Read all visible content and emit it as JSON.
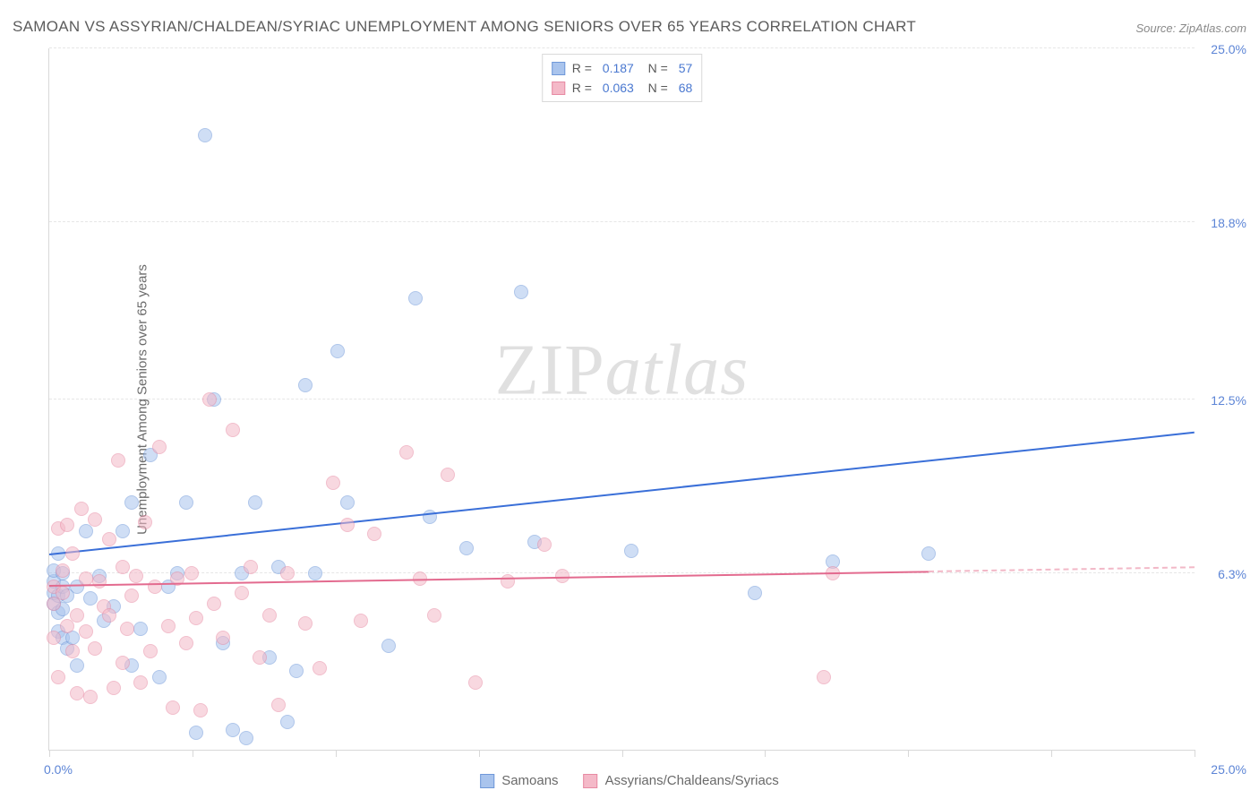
{
  "title": "SAMOAN VS ASSYRIAN/CHALDEAN/SYRIAC UNEMPLOYMENT AMONG SENIORS OVER 65 YEARS CORRELATION CHART",
  "source": "Source: ZipAtlas.com",
  "y_axis_label": "Unemployment Among Seniors over 65 years",
  "watermark_a": "ZIP",
  "watermark_b": "atlas",
  "chart": {
    "type": "scatter",
    "xlim": [
      0,
      25
    ],
    "ylim": [
      0,
      25
    ],
    "y_ticks": [
      {
        "v": 6.3,
        "label": "6.3%"
      },
      {
        "v": 12.5,
        "label": "12.5%"
      },
      {
        "v": 18.8,
        "label": "18.8%"
      },
      {
        "v": 25.0,
        "label": "25.0%"
      }
    ],
    "x_ticks": [
      0,
      3.125,
      6.25,
      9.375,
      12.5,
      15.625,
      18.75,
      21.875,
      25
    ],
    "x_origin_label": "0.0%",
    "x_max_label": "25.0%",
    "grid_color": "#e6e6e6",
    "axis_color": "#d8d8d8",
    "background_color": "#ffffff",
    "point_radius": 8,
    "point_opacity": 0.55,
    "series": [
      {
        "name": "Samoans",
        "label": "Samoans",
        "color_fill": "#a9c4ed",
        "color_stroke": "#6f98d9",
        "R": "0.187",
        "N": "57",
        "trend": {
          "x1": 0.0,
          "y1": 6.95,
          "x2": 25.0,
          "y2": 11.3,
          "color": "#3a6fd8"
        },
        "points": [
          [
            0.1,
            5.2
          ],
          [
            0.1,
            5.6
          ],
          [
            0.1,
            6.0
          ],
          [
            0.1,
            6.4
          ],
          [
            0.2,
            4.2
          ],
          [
            0.2,
            4.9
          ],
          [
            0.2,
            5.5
          ],
          [
            0.2,
            7.0
          ],
          [
            0.3,
            4.0
          ],
          [
            0.3,
            5.0
          ],
          [
            0.3,
            5.8
          ],
          [
            0.3,
            6.3
          ],
          [
            0.4,
            3.6
          ],
          [
            0.4,
            5.5
          ],
          [
            0.5,
            4.0
          ],
          [
            0.6,
            3.0
          ],
          [
            0.6,
            5.8
          ],
          [
            0.8,
            7.8
          ],
          [
            0.9,
            5.4
          ],
          [
            1.1,
            6.2
          ],
          [
            1.2,
            4.6
          ],
          [
            1.4,
            5.1
          ],
          [
            1.6,
            7.8
          ],
          [
            1.8,
            3.0
          ],
          [
            1.8,
            8.8
          ],
          [
            2.0,
            4.3
          ],
          [
            2.2,
            10.5
          ],
          [
            2.4,
            2.6
          ],
          [
            2.6,
            5.8
          ],
          [
            2.8,
            6.3
          ],
          [
            3.0,
            8.8
          ],
          [
            3.2,
            0.6
          ],
          [
            3.4,
            21.9
          ],
          [
            3.6,
            12.5
          ],
          [
            3.8,
            3.8
          ],
          [
            4.0,
            0.7
          ],
          [
            4.2,
            6.3
          ],
          [
            4.3,
            0.4
          ],
          [
            4.5,
            8.8
          ],
          [
            4.8,
            3.3
          ],
          [
            5.0,
            6.5
          ],
          [
            5.2,
            1.0
          ],
          [
            5.4,
            2.8
          ],
          [
            5.6,
            13.0
          ],
          [
            5.8,
            6.3
          ],
          [
            6.3,
            14.2
          ],
          [
            6.5,
            8.8
          ],
          [
            7.4,
            3.7
          ],
          [
            8.0,
            16.1
          ],
          [
            8.3,
            8.3
          ],
          [
            9.1,
            7.2
          ],
          [
            10.3,
            16.3
          ],
          [
            10.6,
            7.4
          ],
          [
            12.7,
            7.1
          ],
          [
            15.4,
            5.6
          ],
          [
            17.1,
            6.7
          ],
          [
            19.2,
            7.0
          ]
        ]
      },
      {
        "name": "Assyrians/Chaldeans/Syriacs",
        "label": "Assyrians/Chaldeans/Syriacs",
        "color_fill": "#f4b9c8",
        "color_stroke": "#e78aa3",
        "R": "0.063",
        "N": "68",
        "trend": {
          "x1": 0.0,
          "y1": 5.85,
          "x2": 19.2,
          "y2": 6.35,
          "color": "#e36b8f"
        },
        "trend_dash": {
          "x1": 19.2,
          "y1": 6.35,
          "x2": 25.0,
          "y2": 6.5,
          "color": "#f2b8c7"
        },
        "points": [
          [
            0.1,
            5.2
          ],
          [
            0.1,
            5.8
          ],
          [
            0.1,
            4.0
          ],
          [
            0.2,
            7.9
          ],
          [
            0.2,
            2.6
          ],
          [
            0.3,
            5.6
          ],
          [
            0.3,
            6.4
          ],
          [
            0.4,
            8.0
          ],
          [
            0.4,
            4.4
          ],
          [
            0.5,
            3.5
          ],
          [
            0.5,
            7.0
          ],
          [
            0.6,
            4.8
          ],
          [
            0.6,
            2.0
          ],
          [
            0.7,
            8.6
          ],
          [
            0.8,
            6.1
          ],
          [
            0.8,
            4.2
          ],
          [
            0.9,
            1.9
          ],
          [
            1.0,
            8.2
          ],
          [
            1.0,
            3.6
          ],
          [
            1.1,
            6.0
          ],
          [
            1.2,
            5.1
          ],
          [
            1.3,
            4.8
          ],
          [
            1.3,
            7.5
          ],
          [
            1.4,
            2.2
          ],
          [
            1.5,
            10.3
          ],
          [
            1.6,
            3.1
          ],
          [
            1.6,
            6.5
          ],
          [
            1.7,
            4.3
          ],
          [
            1.8,
            5.5
          ],
          [
            1.9,
            6.2
          ],
          [
            2.0,
            2.4
          ],
          [
            2.1,
            8.1
          ],
          [
            2.2,
            3.5
          ],
          [
            2.3,
            5.8
          ],
          [
            2.4,
            10.8
          ],
          [
            2.6,
            4.4
          ],
          [
            2.7,
            1.5
          ],
          [
            2.8,
            6.1
          ],
          [
            3.0,
            3.8
          ],
          [
            3.1,
            6.3
          ],
          [
            3.2,
            4.7
          ],
          [
            3.3,
            1.4
          ],
          [
            3.5,
            12.5
          ],
          [
            3.6,
            5.2
          ],
          [
            3.8,
            4.0
          ],
          [
            4.0,
            11.4
          ],
          [
            4.2,
            5.6
          ],
          [
            4.4,
            6.5
          ],
          [
            4.6,
            3.3
          ],
          [
            4.8,
            4.8
          ],
          [
            5.0,
            1.6
          ],
          [
            5.2,
            6.3
          ],
          [
            5.6,
            4.5
          ],
          [
            5.9,
            2.9
          ],
          [
            6.2,
            9.5
          ],
          [
            6.5,
            8.0
          ],
          [
            6.8,
            4.6
          ],
          [
            7.1,
            7.7
          ],
          [
            7.8,
            10.6
          ],
          [
            8.1,
            6.1
          ],
          [
            8.4,
            4.8
          ],
          [
            8.7,
            9.8
          ],
          [
            9.3,
            2.4
          ],
          [
            10.0,
            6.0
          ],
          [
            10.8,
            7.3
          ],
          [
            11.2,
            6.2
          ],
          [
            16.9,
            2.6
          ],
          [
            17.1,
            6.3
          ]
        ]
      }
    ]
  },
  "legend_top_labels": {
    "R": "R",
    "eq": "=",
    "N": "N"
  },
  "legend_bottom": [
    {
      "series": 0
    },
    {
      "series": 1
    }
  ]
}
